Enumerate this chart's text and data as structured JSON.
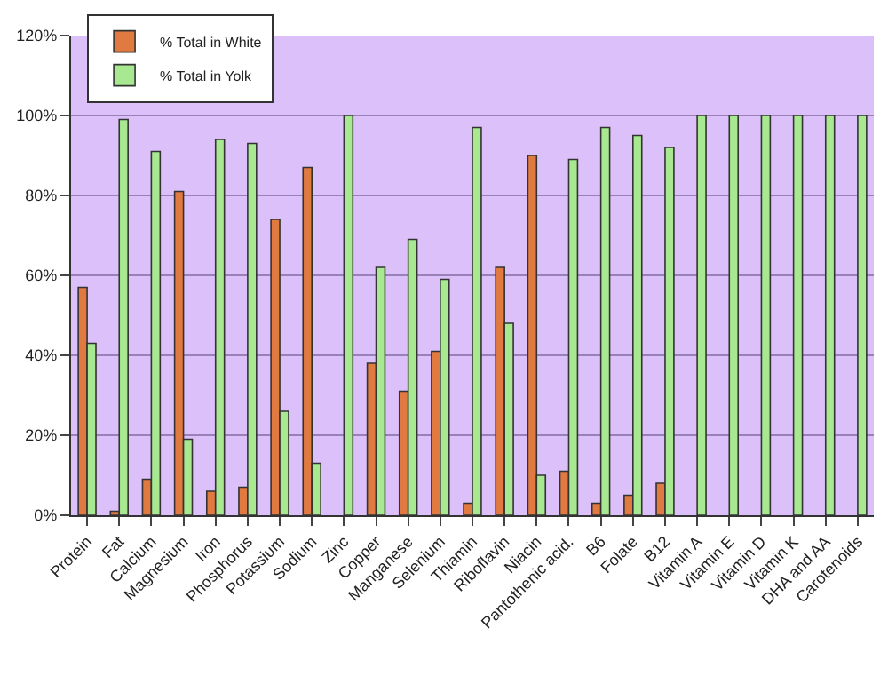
{
  "chart_data": {
    "type": "bar",
    "categories": [
      "Protein",
      "Fat",
      "Calcium",
      "Magnesium",
      "Iron",
      "Phosphorus",
      "Potassium",
      "Sodium",
      "Zinc",
      "Copper",
      "Manganese",
      "Selenium",
      "Thiamin",
      "Riboflavin",
      "Niacin",
      "Pantothenic acid.",
      "B6",
      "Folate",
      "B12",
      "Vitamin A",
      "Vitamin E",
      "Vitamin D",
      "Vitamin K",
      "DHA and AA",
      "Carotenoids"
    ],
    "series": [
      {
        "name": "% Total in White",
        "color": "#e07a40",
        "values": [
          57,
          1,
          9,
          81,
          6,
          7,
          74,
          87,
          null,
          38,
          31,
          41,
          3,
          62,
          90,
          11,
          3,
          5,
          8,
          null,
          null,
          null,
          null,
          null,
          null
        ]
      },
      {
        "name": "% Total in Yolk",
        "color": "#a8e890",
        "values": [
          43,
          99,
          91,
          19,
          94,
          93,
          26,
          13,
          100,
          62,
          69,
          59,
          97,
          48,
          10,
          89,
          97,
          95,
          92,
          100,
          100,
          100,
          100,
          100,
          100
        ]
      }
    ],
    "ylim": [
      0,
      120
    ],
    "yticks": [
      {
        "value": 0,
        "label": "0%"
      },
      {
        "value": 20,
        "label": "20%"
      },
      {
        "value": 40,
        "label": "40%"
      },
      {
        "value": 60,
        "label": "60%"
      },
      {
        "value": 80,
        "label": "80%"
      },
      {
        "value": 100,
        "label": "100%"
      },
      {
        "value": 120,
        "label": "120%"
      }
    ],
    "grid": "y",
    "legend": "top left"
  }
}
